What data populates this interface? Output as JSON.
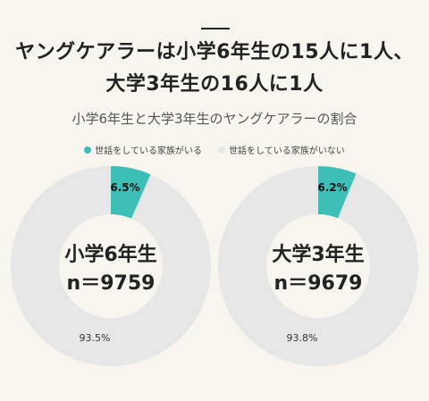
{
  "headline": {
    "line1": "ヤングケアラーは小学6年生の15人に1人、",
    "line2": "大学3年生の16人に1人"
  },
  "subtitle": "小学6年生と大学3年生のヤングケアラーの割合",
  "legend": [
    {
      "label": "世話をしている家族がいる",
      "color": "#3dbfb8"
    },
    {
      "label": "世話をしている家族がいない",
      "color": "#e6e6e6"
    }
  ],
  "chart_data": [
    {
      "type": "pie",
      "group": "小学6年生",
      "n_label": "n＝9759",
      "slices": [
        {
          "name": "世話をしている家族がいる",
          "value": 6.5,
          "label": "6.5%"
        },
        {
          "name": "世話をしている家族がいない",
          "value": 93.5,
          "label": "93.5%"
        }
      ]
    },
    {
      "type": "pie",
      "group": "大学3年生",
      "n_label": "n＝9679",
      "slices": [
        {
          "name": "世話をしている家族がいる",
          "value": 6.2,
          "label": "6.2%"
        },
        {
          "name": "世話をしている家族がいない",
          "value": 93.8,
          "label": "93.8%"
        }
      ]
    }
  ]
}
